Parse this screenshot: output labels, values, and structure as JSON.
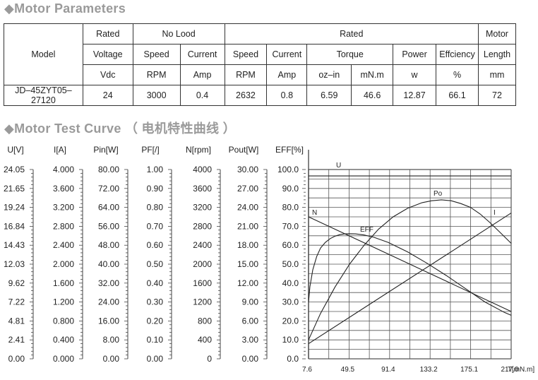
{
  "sections": {
    "params_title": "Motor Parameters",
    "curve_title": "Motor Test Curve",
    "curve_title_cn": "（ 电机特性曲线 ）",
    "bullet": "◆"
  },
  "table": {
    "model_label": "Model",
    "group_rated_voltage": "Rated",
    "group_no_load": "No Lood",
    "group_rated": "Rated",
    "group_motor": "Motor",
    "col_voltage": "Voltage",
    "col_nl_speed": "Speed",
    "col_nl_current": "Current",
    "col_speed": "Speed",
    "col_current": "Current",
    "col_torque": "Torque",
    "col_power": "Power",
    "col_efficiency": "Effciency",
    "col_length": "Length",
    "unit_voltage": "Vdc",
    "unit_nl_speed": "RPM",
    "unit_nl_current": "Amp",
    "unit_speed": "RPM",
    "unit_current": "Amp",
    "unit_torque_oz": "oz–in",
    "unit_torque_mn": "mN.m",
    "unit_power": "w",
    "unit_efficiency": "%",
    "unit_length": "mm",
    "row": {
      "model": "JD–45ZYT05–27120",
      "voltage": "24",
      "nl_speed": "3000",
      "nl_current": "0.4",
      "speed": "2632",
      "current": "0.8",
      "torque_oz": "6.59",
      "torque_mn": "46.6",
      "power": "12.87",
      "efficiency": "66.1",
      "length": "72"
    }
  },
  "chart_data": {
    "type": "line",
    "xlabel": "T[mN.m]",
    "xlim": [
      7.6,
      217.0
    ],
    "x_ticks": [
      "7.6",
      "49.5",
      "91.4",
      "133.2",
      "175.1",
      "217.0"
    ],
    "scales": [
      {
        "label": "U[V]",
        "ticks": [
          "24.05",
          "21.65",
          "19.24",
          "16.84",
          "14.43",
          "12.03",
          "9.62",
          "7.22",
          "4.81",
          "2.41",
          "0.00"
        ]
      },
      {
        "label": "I[A]",
        "ticks": [
          "4.000",
          "3.600",
          "3.200",
          "2.800",
          "2.400",
          "2.000",
          "1.600",
          "1.200",
          "0.800",
          "0.400",
          "0.000"
        ]
      },
      {
        "label": "Pin[W]",
        "ticks": [
          "80.00",
          "72.00",
          "64.00",
          "56.00",
          "48.00",
          "40.00",
          "32.00",
          "24.00",
          "16.00",
          "8.00",
          "0.00"
        ]
      },
      {
        "label": "PF[/]",
        "ticks": [
          "1.00",
          "0.90",
          "0.80",
          "0.70",
          "0.60",
          "0.50",
          "0.40",
          "0.30",
          "0.20",
          "0.10",
          "0.00"
        ]
      },
      {
        "label": "N[rpm]",
        "ticks": [
          "4000",
          "3600",
          "3200",
          "2800",
          "2400",
          "2000",
          "1600",
          "1200",
          "800",
          "400",
          "0"
        ]
      },
      {
        "label": "Pout[W]",
        "ticks": [
          "30.00",
          "27.00",
          "24.00",
          "21.00",
          "18.00",
          "15.00",
          "12.00",
          "9.00",
          "6.00",
          "3.00",
          "0.00"
        ]
      },
      {
        "label": "EFF[%]",
        "ticks": [
          "100.0",
          "90.0",
          "80.0",
          "70.0",
          "60.0",
          "50.0",
          "40.0",
          "30.0",
          "20.0",
          "10.0",
          "0.0"
        ]
      }
    ],
    "series": [
      {
        "name": "U",
        "scale": "EFF[%]",
        "x": [
          7.6,
          217.0
        ],
        "y": [
          96.6,
          96.6
        ]
      },
      {
        "name": "N",
        "scale": "EFF[%]",
        "x": [
          7.6,
          217.0
        ],
        "y": [
          75.0,
          25.0
        ]
      },
      {
        "name": "I",
        "scale": "EFF[%]",
        "x": [
          7.6,
          217.0
        ],
        "y": [
          8.0,
          77.0
        ]
      },
      {
        "name": "EFF",
        "scale": "EFF[%]",
        "x": [
          7.6,
          9,
          12,
          16,
          20,
          25,
          30,
          35,
          40,
          45,
          50,
          56,
          65,
          75,
          90,
          110,
          130,
          150,
          170,
          190,
          210,
          217.0
        ],
        "y": [
          30,
          38,
          47,
          54,
          58.5,
          61.5,
          63.5,
          64.8,
          65.6,
          66.0,
          66.1,
          66.0,
          65.4,
          64.2,
          61.5,
          56.5,
          50.5,
          44,
          37,
          30,
          24.5,
          23
        ]
      },
      {
        "name": "Po",
        "scale": "EFF[%]",
        "x": [
          7.6,
          20,
          35,
          50,
          65,
          80,
          95,
          110,
          125,
          135,
          145,
          155,
          165,
          175,
          185,
          195,
          205,
          217.0
        ],
        "y": [
          10,
          24,
          38,
          50,
          60,
          68.5,
          75,
          79.5,
          82.5,
          83.5,
          84,
          83.5,
          82,
          80,
          76.5,
          72,
          67,
          61
        ]
      }
    ],
    "grid": true
  }
}
